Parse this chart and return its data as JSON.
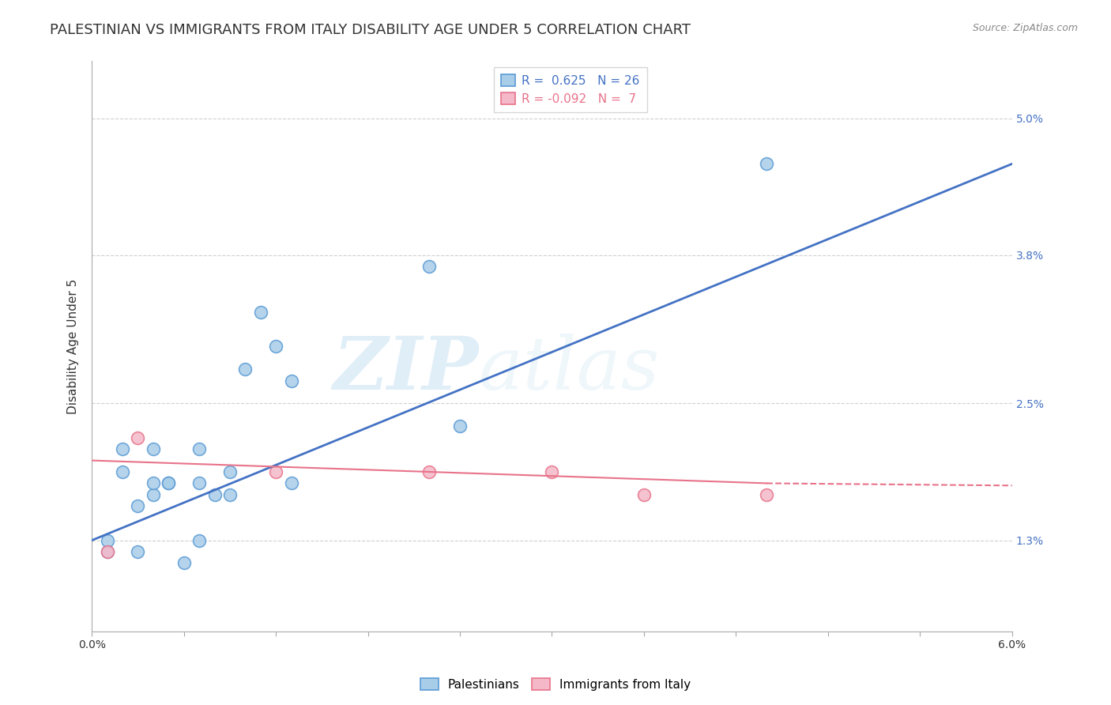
{
  "title": "PALESTINIAN VS IMMIGRANTS FROM ITALY DISABILITY AGE UNDER 5 CORRELATION CHART",
  "source": "Source: ZipAtlas.com",
  "ylabel": "Disability Age Under 5",
  "xlim": [
    0.0,
    0.06
  ],
  "ylim": [
    0.005,
    0.055
  ],
  "yticks": [
    0.013,
    0.025,
    0.038,
    0.05
  ],
  "ytick_labels": [
    "1.3%",
    "2.5%",
    "3.8%",
    "5.0%"
  ],
  "xticks": [
    0.0,
    0.006,
    0.012,
    0.018,
    0.024,
    0.03,
    0.036,
    0.042,
    0.048,
    0.054,
    0.06
  ],
  "xtick_labels": [
    "0.0%",
    "",
    "",
    "",
    "",
    "",
    "",
    "",
    "",
    "",
    "6.0%"
  ],
  "blue_R": 0.625,
  "blue_N": 26,
  "pink_R": -0.092,
  "pink_N": 7,
  "blue_color": "#a8cde8",
  "pink_color": "#f4b8c8",
  "blue_edge_color": "#5b9bd5",
  "pink_edge_color": "#e8738a",
  "blue_line_color": "#4472c4",
  "pink_line_color": "#e8738a",
  "blue_points_x": [
    0.001,
    0.001,
    0.002,
    0.002,
    0.003,
    0.003,
    0.004,
    0.004,
    0.004,
    0.005,
    0.005,
    0.006,
    0.007,
    0.007,
    0.007,
    0.008,
    0.009,
    0.009,
    0.01,
    0.011,
    0.012,
    0.013,
    0.013,
    0.022,
    0.024,
    0.044
  ],
  "blue_points_y": [
    0.012,
    0.013,
    0.019,
    0.021,
    0.012,
    0.016,
    0.017,
    0.018,
    0.021,
    0.018,
    0.018,
    0.011,
    0.021,
    0.018,
    0.013,
    0.017,
    0.017,
    0.019,
    0.028,
    0.033,
    0.03,
    0.018,
    0.027,
    0.037,
    0.023,
    0.046
  ],
  "pink_points_x": [
    0.001,
    0.003,
    0.012,
    0.022,
    0.03,
    0.036,
    0.044
  ],
  "pink_points_y": [
    0.012,
    0.022,
    0.019,
    0.019,
    0.019,
    0.017,
    0.017
  ],
  "blue_line_x_start": 0.0,
  "blue_line_x_end": 0.06,
  "blue_line_y_start": 0.013,
  "blue_line_y_end": 0.046,
  "pink_line_x_solid_start": 0.0,
  "pink_line_x_solid_end": 0.044,
  "pink_line_y_solid_start": 0.02,
  "pink_line_y_solid_end": 0.018,
  "pink_line_x_dash_start": 0.044,
  "pink_line_x_dash_end": 0.06,
  "pink_line_y_dash_start": 0.018,
  "pink_line_y_dash_end": 0.0178,
  "watermark_zip": "ZIP",
  "watermark_atlas": "atlas",
  "background_color": "#ffffff",
  "grid_color": "#d0d0d0",
  "title_fontsize": 13,
  "axis_label_fontsize": 11,
  "tick_fontsize": 10,
  "legend_fontsize": 11,
  "point_size": 130
}
